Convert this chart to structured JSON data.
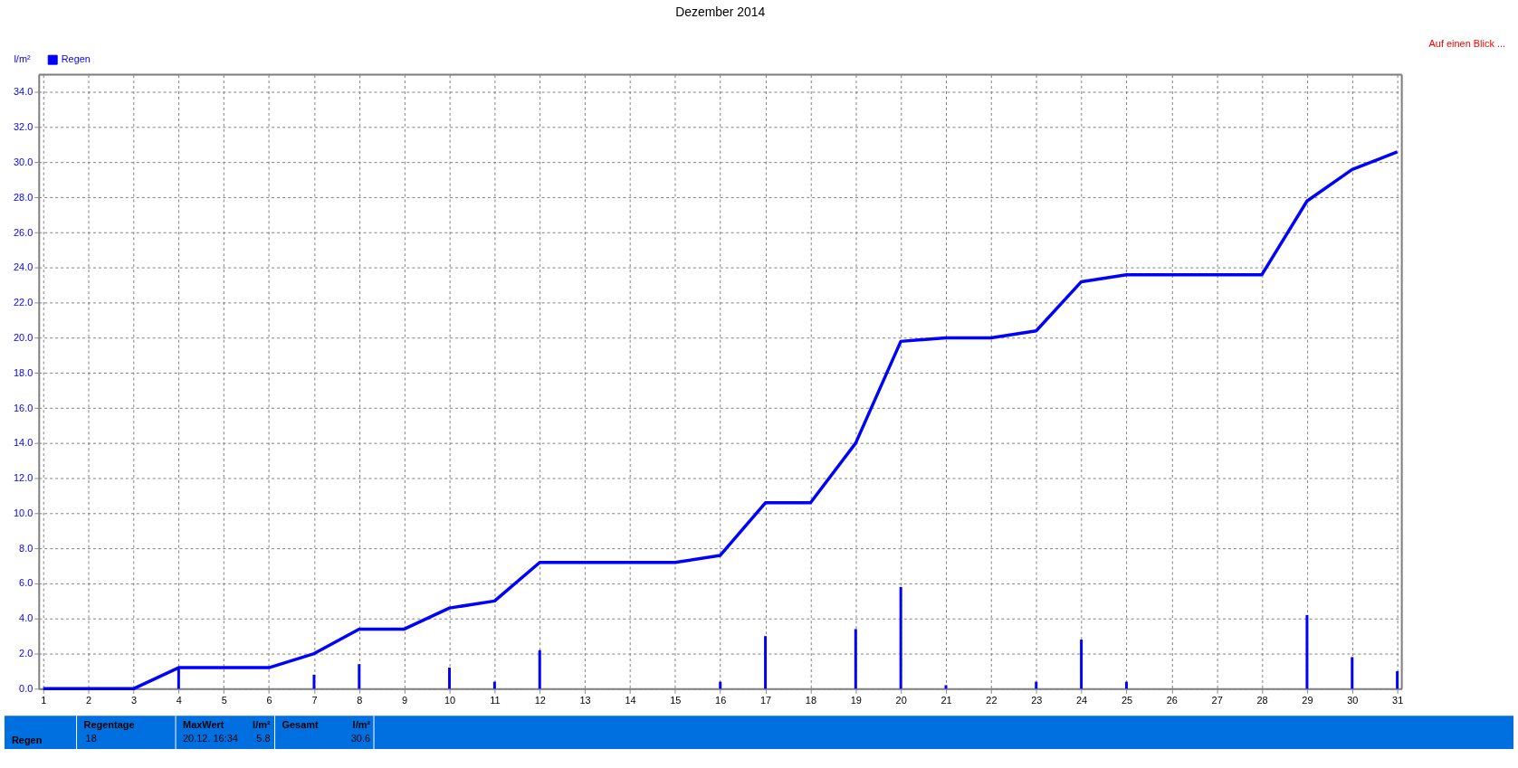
{
  "chart_data": {
    "type": "line",
    "title": "Dezember 2014",
    "ylabel": "l/m²",
    "xlim": [
      1,
      31
    ],
    "xticks": [
      1,
      2,
      3,
      4,
      5,
      6,
      7,
      8,
      9,
      10,
      11,
      12,
      13,
      14,
      15,
      16,
      17,
      18,
      19,
      20,
      21,
      22,
      23,
      24,
      25,
      26,
      27,
      28,
      29,
      30,
      31
    ],
    "ylim": [
      0,
      35
    ],
    "yticks": [
      {
        "value": 0,
        "label": "0.0"
      },
      {
        "value": 2,
        "label": "2.0"
      },
      {
        "value": 4,
        "label": "4.0"
      },
      {
        "value": 6,
        "label": "6.0"
      },
      {
        "value": 8,
        "label": "8.0"
      },
      {
        "value": 10,
        "label": "10.0"
      },
      {
        "value": 12,
        "label": "12.0"
      },
      {
        "value": 14,
        "label": "14.0"
      },
      {
        "value": 16,
        "label": "16.0"
      },
      {
        "value": 18,
        "label": "18.0"
      },
      {
        "value": 20,
        "label": "20.0"
      },
      {
        "value": 22,
        "label": "22.0"
      },
      {
        "value": 24,
        "label": "24.0"
      },
      {
        "value": 26,
        "label": "26.0"
      },
      {
        "value": 28,
        "label": "28.0"
      },
      {
        "value": 30,
        "label": "30.0"
      },
      {
        "value": 32,
        "label": "32.0"
      },
      {
        "value": 34,
        "label": "34.0"
      }
    ],
    "grid": true,
    "legend": "top left",
    "line_style": "solid",
    "series": [
      {
        "name": "Regen",
        "color": "#0000ff",
        "x": [
          1,
          2,
          3,
          4,
          5,
          6,
          7,
          8,
          9,
          10,
          11,
          12,
          13,
          14,
          15,
          16,
          17,
          18,
          19,
          20,
          21,
          22,
          23,
          24,
          25,
          26,
          27,
          28,
          29,
          30,
          31
        ],
        "values": [
          0,
          0,
          0,
          1.2,
          1.2,
          1.2,
          2.0,
          3.4,
          3.4,
          4.6,
          5.0,
          7.2,
          7.2,
          7.2,
          7.2,
          7.6,
          10.6,
          10.6,
          14.0,
          19.8,
          20.0,
          20.0,
          20.4,
          23.2,
          23.6,
          23.6,
          23.6,
          23.6,
          27.8,
          29.6,
          30.6
        ]
      },
      {
        "type": "bar",
        "color": "#0000ff",
        "x": [
          4,
          7,
          8,
          10,
          11,
          12,
          16,
          17,
          19,
          20,
          21,
          23,
          24,
          25,
          29,
          30,
          31
        ],
        "values": [
          1.2,
          0.8,
          1.4,
          1.2,
          0.4,
          2.2,
          0.4,
          3.0,
          3.4,
          5.8,
          0.2,
          0.4,
          2.8,
          0.4,
          4.2,
          1.8,
          1.0
        ]
      }
    ],
    "annotations": [
      "Auf einen Blick ...",
      "Regen",
      "Regentage",
      "18",
      "MaxWert",
      "l/m²",
      "20.12.  16:34",
      "5.8",
      "Gesamt",
      "l/m²",
      "30.6"
    ]
  }
}
